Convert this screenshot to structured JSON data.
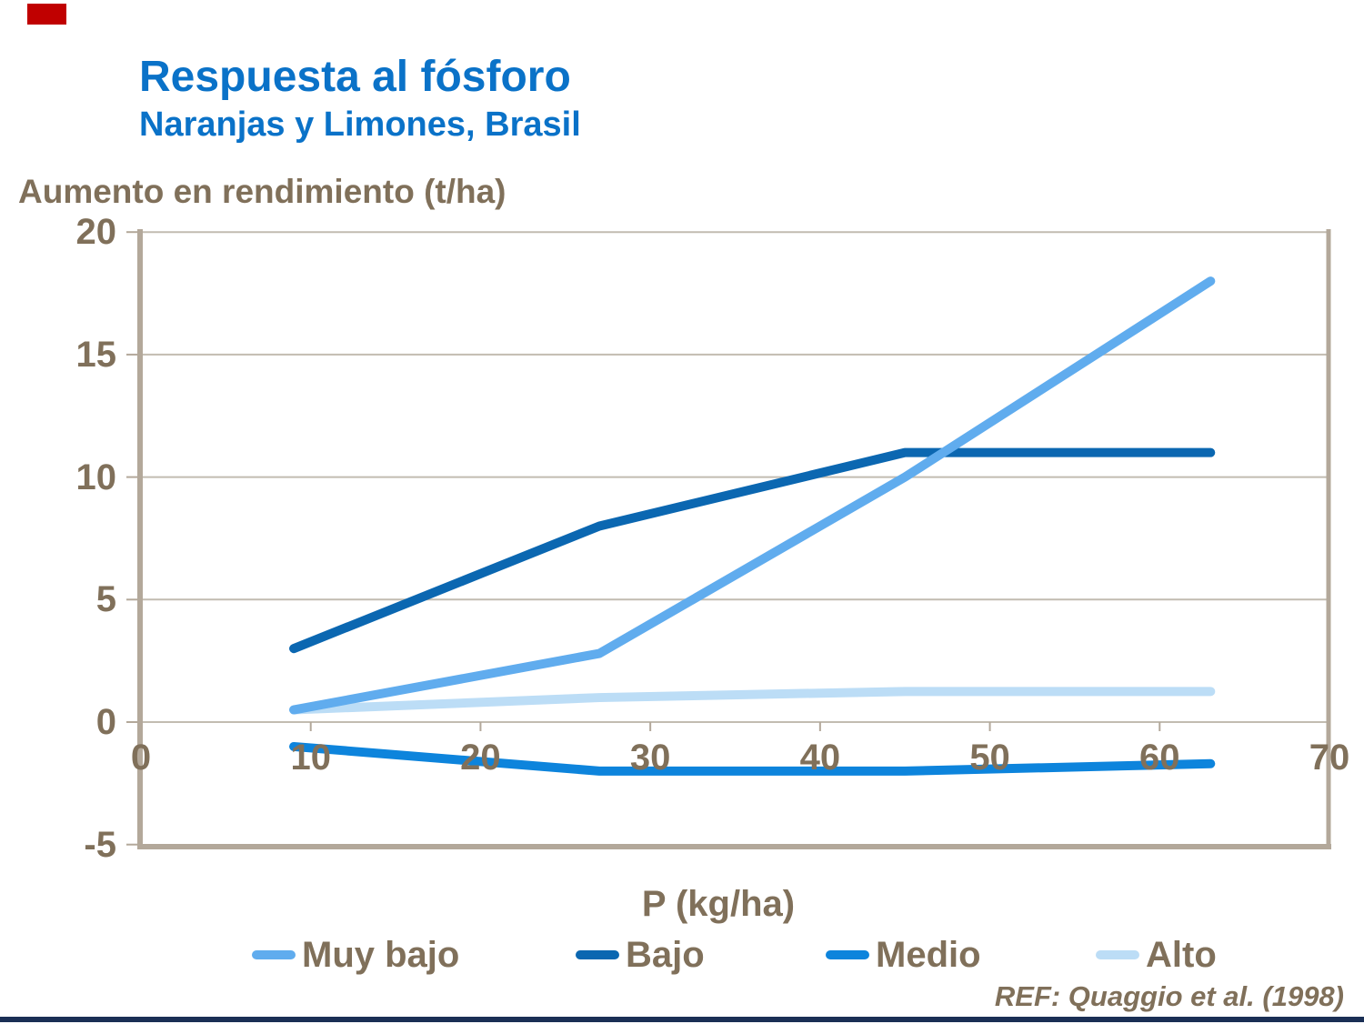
{
  "slide": {
    "title": "Respuesta al fósforo",
    "subtitle": "Naranjas y Limones, Brasil",
    "reference": "REF: Quaggio et al. (1998)"
  },
  "colors": {
    "title_blue": "#0A72C8",
    "label_brown": "#80705A",
    "grid": "#C2BCB1",
    "frame": "#B3A89A",
    "footer_navy": "#1A2F55",
    "accent_red": "#C00000"
  },
  "chart_data": {
    "type": "line",
    "title": "Respuesta al fósforo",
    "subtitle": "Naranjas y Limones, Brasil",
    "ylabel": "Aumento en rendimiento (t/ha)",
    "xlabel": "P (kg/ha)",
    "x": [
      9,
      27,
      45,
      63
    ],
    "series": [
      {
        "name": "Muy bajo",
        "color": "#60ACEE",
        "values": [
          0.5,
          2.8,
          10,
          18
        ]
      },
      {
        "name": "Bajo",
        "color": "#0B67B1",
        "values": [
          3,
          8,
          11,
          11
        ]
      },
      {
        "name": "Medio",
        "color": "#0D84DC",
        "values": [
          -1,
          -2,
          -2,
          -1.7
        ]
      },
      {
        "name": "Alto",
        "color": "#BCDDF6",
        "values": [
          0.5,
          1.0,
          1.25,
          1.25
        ]
      }
    ],
    "xlim": [
      0,
      70
    ],
    "ylim": [
      -5,
      20
    ],
    "x_ticks": [
      0,
      10,
      20,
      30,
      40,
      50,
      60,
      70
    ],
    "y_ticks": [
      20,
      15,
      10,
      5,
      0,
      -5
    ],
    "grid": "horizontal",
    "legend_position": "bottom",
    "legend": [
      "Muy bajo",
      "Bajo",
      "Medio",
      "Alto"
    ]
  }
}
